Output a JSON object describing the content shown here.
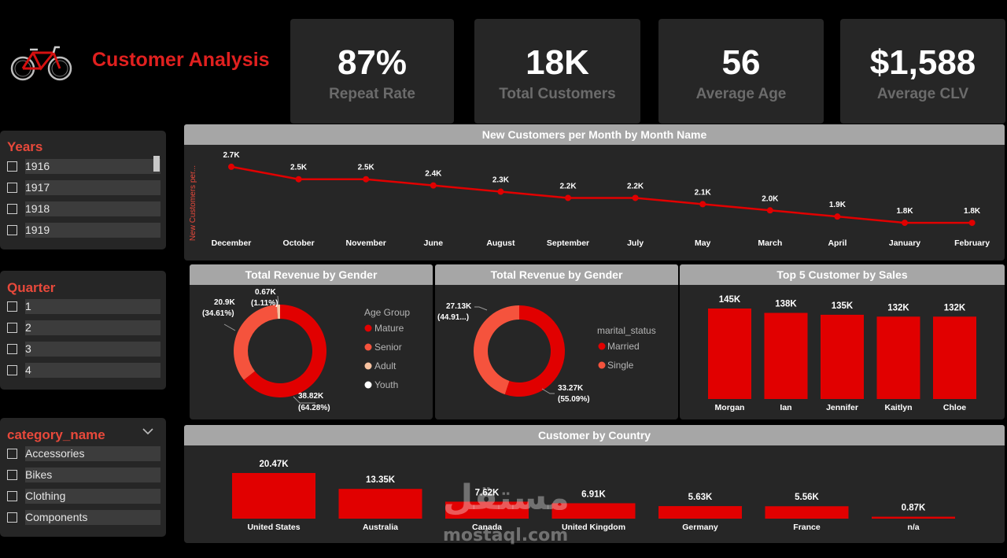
{
  "header": {
    "title": "Customer Analysis",
    "logo_icon": "bicycle-icon"
  },
  "kpis": [
    {
      "value": "87%",
      "label": "Repeat Rate"
    },
    {
      "value": "18K",
      "label": "Total Customers"
    },
    {
      "value": "56",
      "label": "Average Age"
    },
    {
      "value": "$1,588",
      "label": "Average CLV"
    }
  ],
  "slicers": {
    "years": {
      "title": "Years",
      "items": [
        "1916",
        "1917",
        "1918",
        "1919"
      ]
    },
    "quarter": {
      "title": "Quarter",
      "items": [
        "1",
        "2",
        "3",
        "4"
      ]
    },
    "category": {
      "title": "category_name",
      "items": [
        "Accessories",
        "Bikes",
        "Clothing",
        "Components"
      ]
    }
  },
  "colors": {
    "accent": "#e10000",
    "senior": "#f5533d",
    "adult": "#f7c2a0",
    "youth": "#ffffff",
    "panel": "#262626",
    "header": "#a6a6a6"
  },
  "chart_data": [
    {
      "type": "line",
      "title": "New Customers per Month by Month Name",
      "ylabel": "New Customers per...",
      "categories": [
        "December",
        "October",
        "November",
        "June",
        "August",
        "September",
        "July",
        "May",
        "March",
        "April",
        "January",
        "February"
      ],
      "values": [
        2.7,
        2.5,
        2.5,
        2.4,
        2.3,
        2.2,
        2.2,
        2.1,
        2.0,
        1.9,
        1.8,
        1.8
      ],
      "labels": [
        "2.7K",
        "2.5K",
        "2.5K",
        "2.4K",
        "2.3K",
        "2.2K",
        "2.2K",
        "2.1K",
        "2.0K",
        "1.9K",
        "1.8K",
        "1.8K"
      ]
    },
    {
      "type": "pie",
      "title": "Total Revenue by Gender",
      "legend_title": "Age Group",
      "legend": [
        "Mature",
        "Senior",
        "Adult",
        "Youth"
      ],
      "values": [
        38.82,
        20.9,
        0.67
      ],
      "labels": [
        "38.82K",
        "20.9K",
        "0.67K"
      ],
      "percents": [
        "(64.28%)",
        "(34.61%)",
        "(1.11%)"
      ]
    },
    {
      "type": "pie",
      "title": "Total Revenue by Gender",
      "legend_title": "marital_status",
      "legend": [
        "Married",
        "Single"
      ],
      "values": [
        33.27,
        27.13
      ],
      "labels": [
        "33.27K",
        "27.13K"
      ],
      "percents": [
        "(55.09%)",
        "(44.91...)"
      ]
    },
    {
      "type": "bar",
      "title": "Top 5 Customer by Sales",
      "categories": [
        "Morgan",
        "Ian",
        "Jennifer",
        "Kaitlyn",
        "Chloe"
      ],
      "values": [
        145,
        138,
        135,
        132,
        132
      ],
      "labels": [
        "145K",
        "138K",
        "135K",
        "132K",
        "132K"
      ]
    },
    {
      "type": "bar",
      "title": "Customer by Country",
      "categories": [
        "United States",
        "Australia",
        "Canada",
        "United Kingdom",
        "Germany",
        "France",
        "n/a"
      ],
      "values": [
        20.47,
        13.35,
        7.62,
        6.91,
        5.63,
        5.56,
        0.87
      ],
      "labels": [
        "20.47K",
        "13.35K",
        "7.62K",
        "6.91K",
        "5.63K",
        "5.56K",
        "0.87K"
      ]
    }
  ],
  "watermark": {
    "arabic": "مستقل",
    "latin": "mostaql.com"
  }
}
